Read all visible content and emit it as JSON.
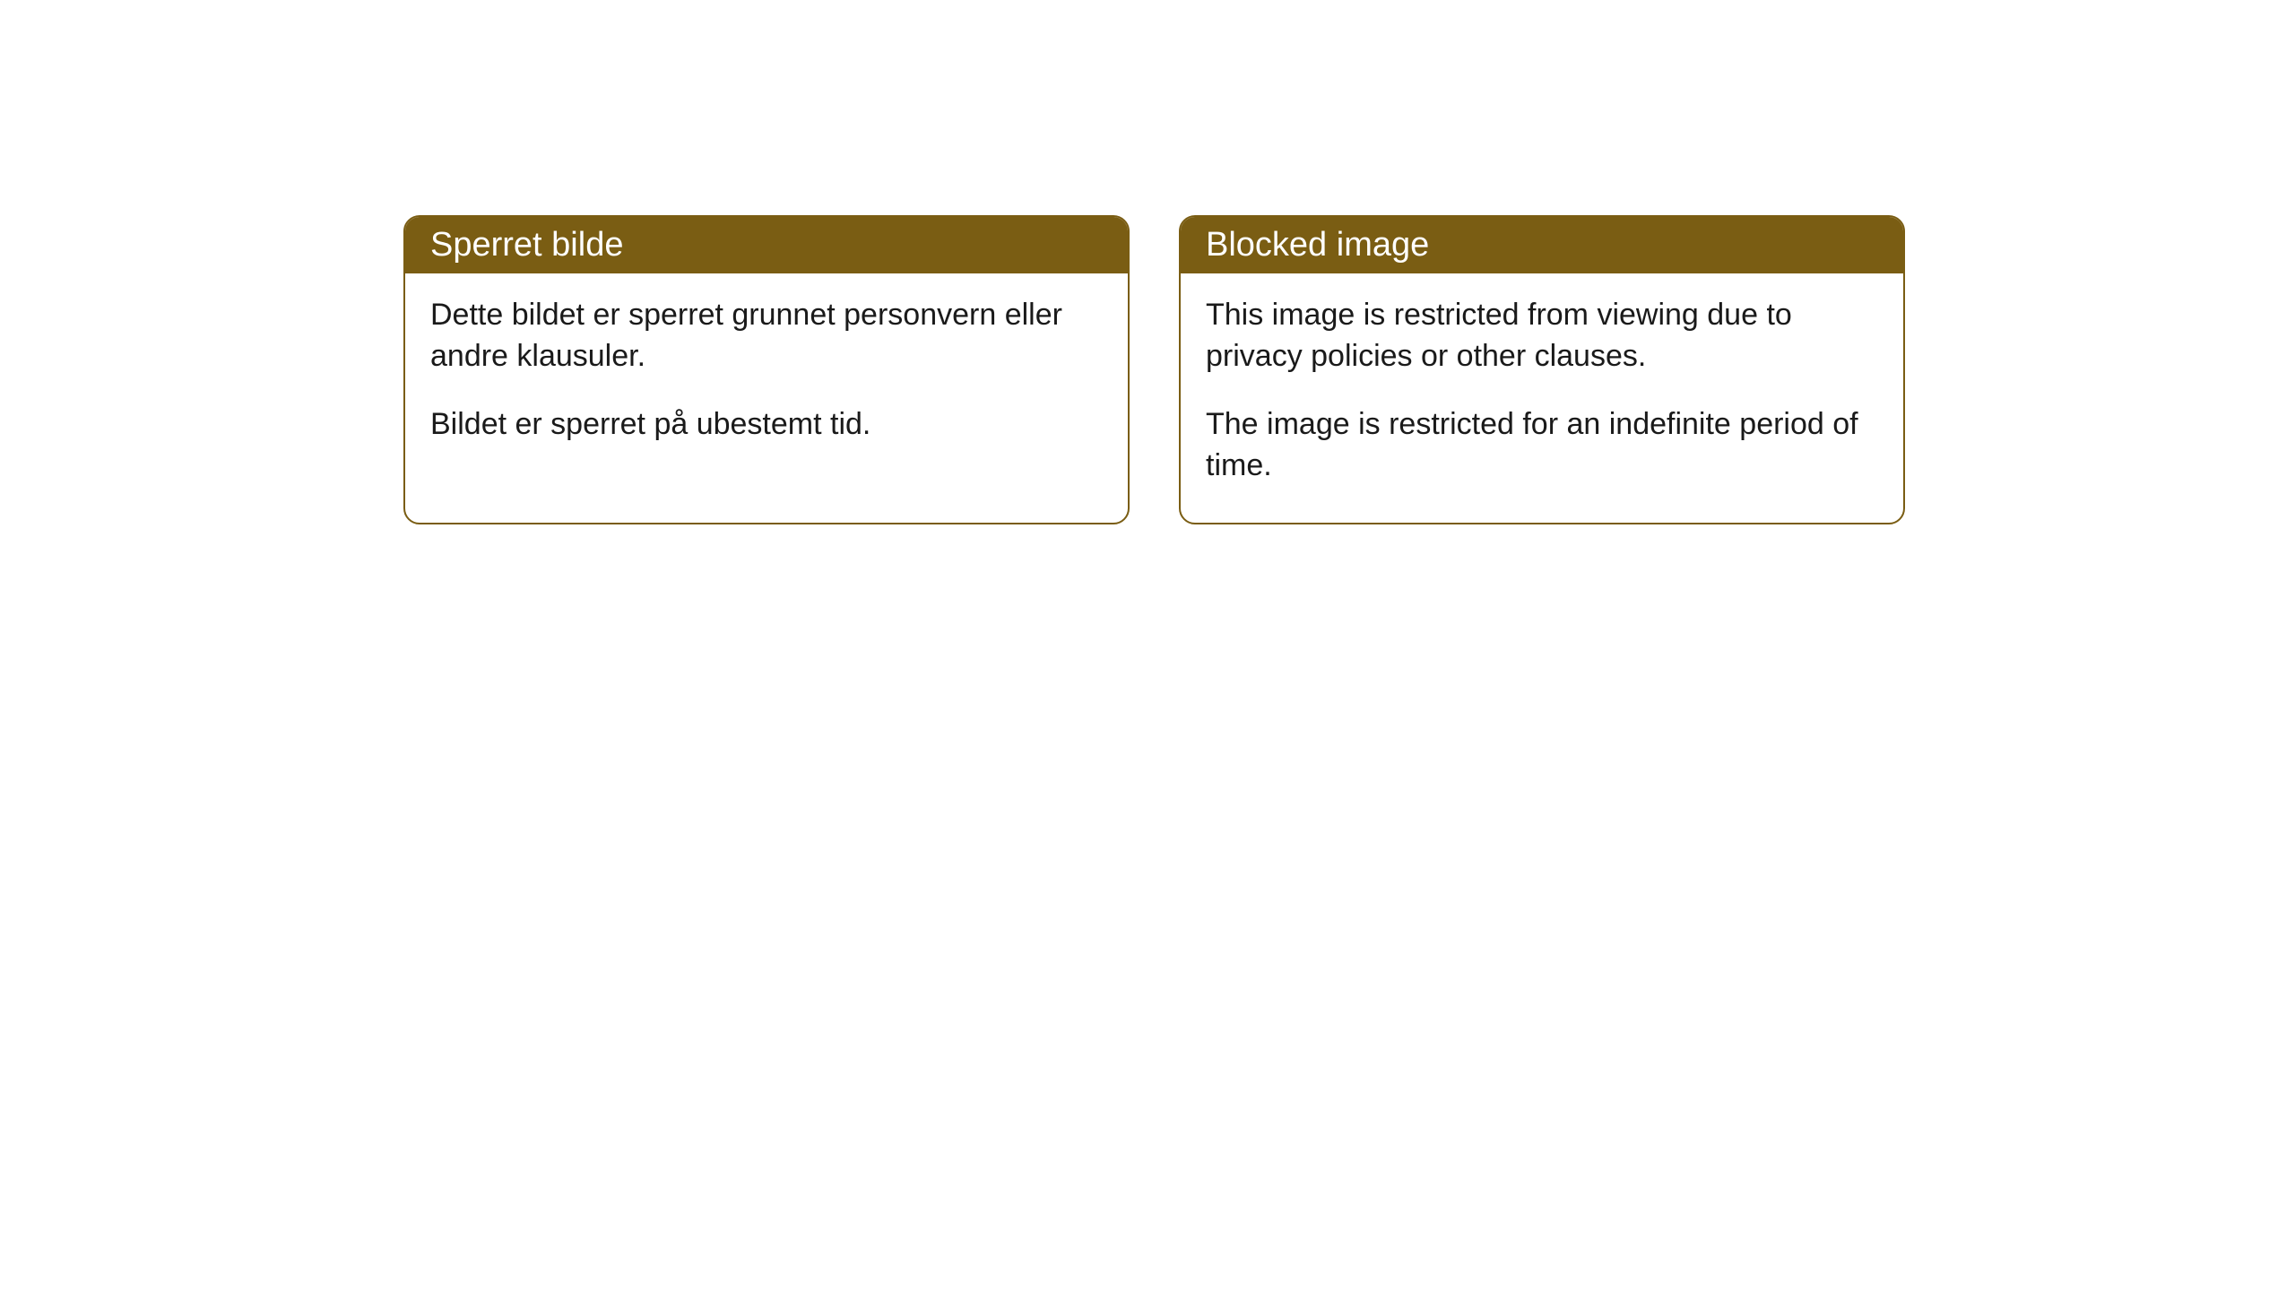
{
  "colors": {
    "header_bg": "#7a5d13",
    "header_text": "#ffffff",
    "border": "#7a5d13",
    "body_bg": "#ffffff",
    "body_text": "#1a1a1a"
  },
  "cards": [
    {
      "title": "Sperret bilde",
      "paragraph1": "Dette bildet er sperret grunnet personvern eller andre klausuler.",
      "paragraph2": "Bildet er sperret på ubestemt tid."
    },
    {
      "title": "Blocked image",
      "paragraph1": "This image is restricted from viewing due to privacy policies or other clauses.",
      "paragraph2": "The image is restricted for an indefinite period of time."
    }
  ]
}
